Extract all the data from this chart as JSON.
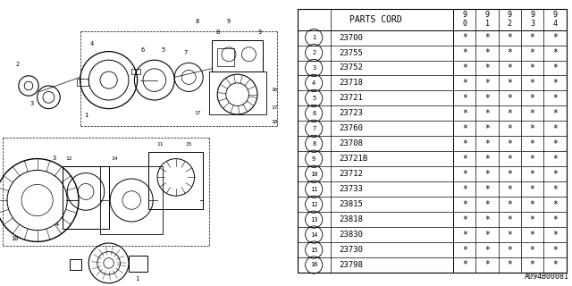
{
  "part_number_label": "A094B00081",
  "rows": [
    {
      "num": 1,
      "code": "23700"
    },
    {
      "num": 2,
      "code": "23755"
    },
    {
      "num": 3,
      "code": "23752"
    },
    {
      "num": 4,
      "code": "23718"
    },
    {
      "num": 5,
      "code": "23721"
    },
    {
      "num": 6,
      "code": "23723"
    },
    {
      "num": 7,
      "code": "23760"
    },
    {
      "num": 8,
      "code": "23708"
    },
    {
      "num": 9,
      "code": "23721B"
    },
    {
      "num": 10,
      "code": "23712"
    },
    {
      "num": 11,
      "code": "23733"
    },
    {
      "num": 12,
      "code": "23815"
    },
    {
      "num": 13,
      "code": "23818"
    },
    {
      "num": 14,
      "code": "23830"
    },
    {
      "num": 15,
      "code": "23730"
    },
    {
      "num": 16,
      "code": "23798"
    }
  ],
  "years": [
    "9\n0",
    "9\n1",
    "9\n2",
    "9\n3",
    "9\n4"
  ],
  "bg_color": "#ffffff",
  "line_color": "#000000"
}
